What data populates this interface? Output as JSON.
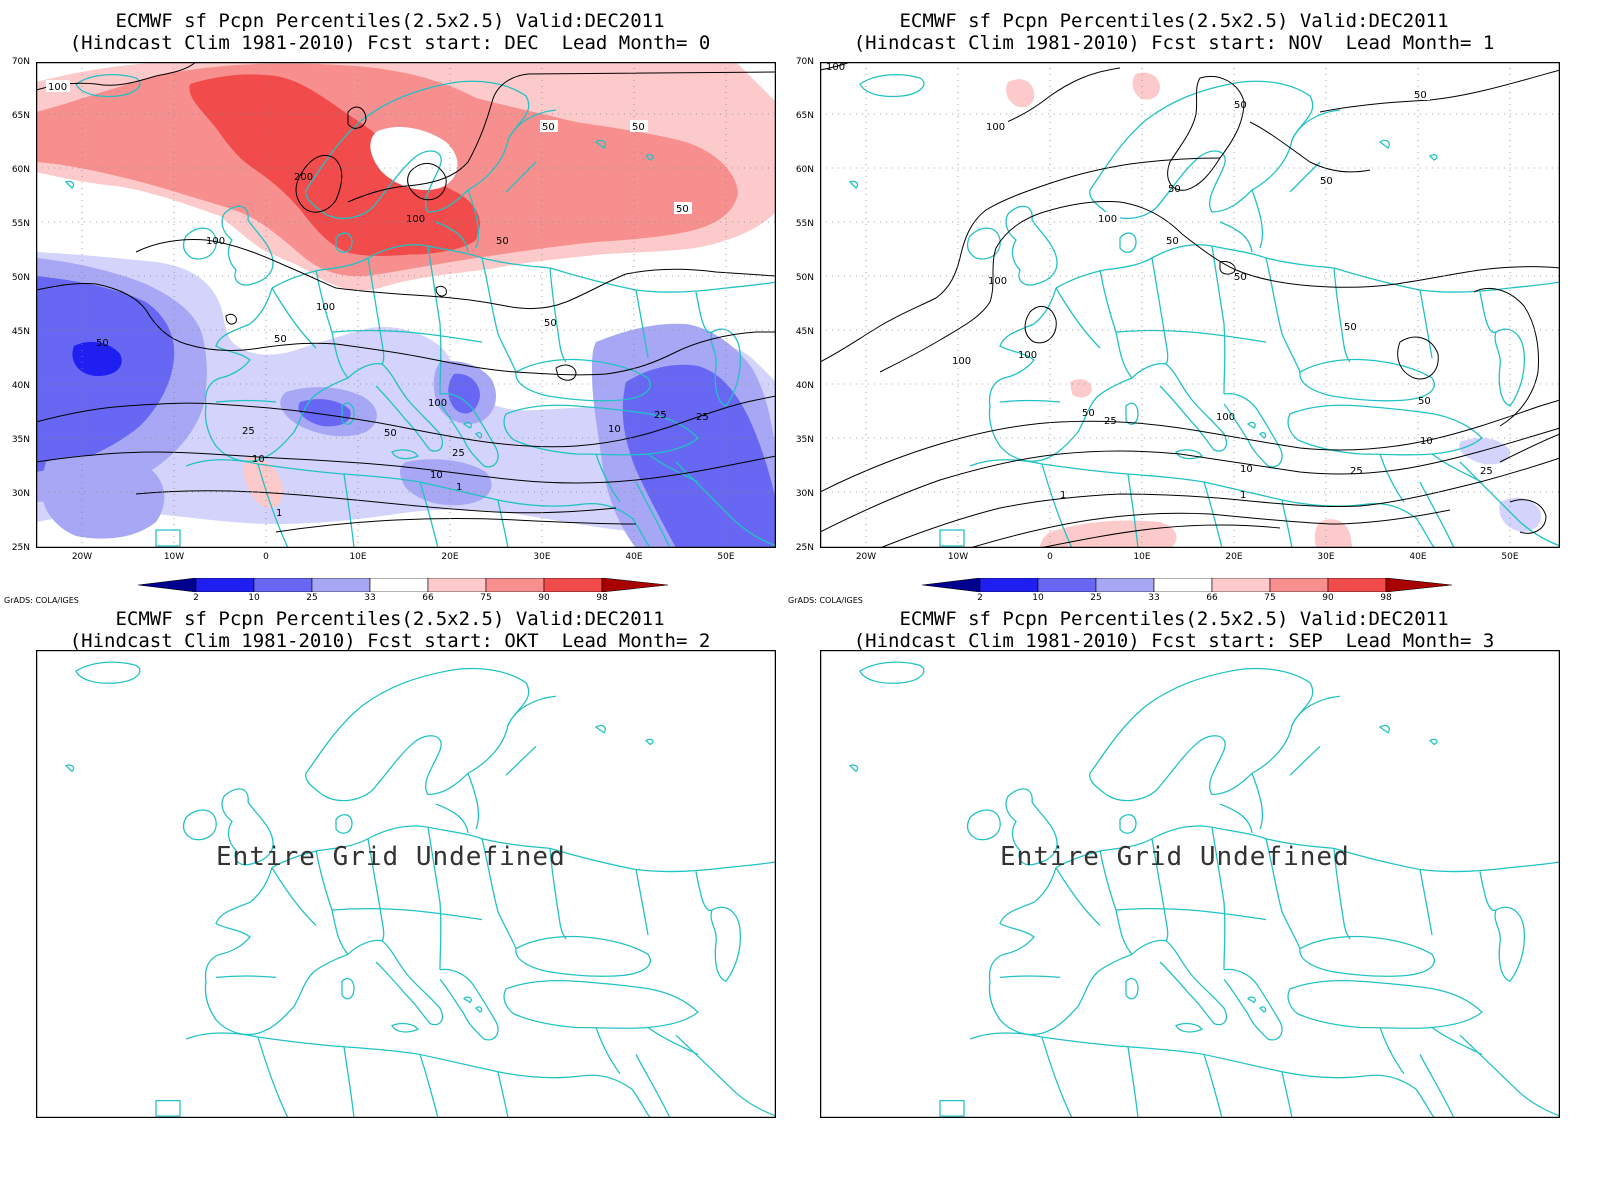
{
  "colors": {
    "coast": "#22c2c4",
    "contour": "#000000",
    "scale": [
      "#00008f",
      "#1f1ff2",
      "#6767f3",
      "#a7a7f5",
      "#d3d3fb",
      "#ffffff",
      "#fccaca",
      "#f88f8f",
      "#f24b4b",
      "#a90000"
    ]
  },
  "icons": [
    "colorbar-left-arrow-icon",
    "colorbar-right-arrow-icon"
  ],
  "axes": {
    "lat_labels": [
      "70N",
      "65N",
      "60N",
      "55N",
      "50N",
      "45N",
      "40N",
      "35N",
      "30N",
      "25N"
    ],
    "lon_labels": [
      "20W",
      "10W",
      "0",
      "10E",
      "20E",
      "30E",
      "40E",
      "50E"
    ]
  },
  "colorbar": {
    "ticks": [
      "2",
      "10",
      "25",
      "33",
      "66",
      "75",
      "90",
      "98"
    ]
  },
  "credit": "GrADS: COLA/IGES",
  "panels": [
    {
      "title_line1": "ECMWF sf Pcpn Percentiles(2.5x2.5) Valid:DEC2011",
      "title_line2": "(Hindcast Clim 1981-2010) Fcst start: DEC  Lead Month= 0",
      "contour_labels": [
        "100",
        "200",
        "100",
        "100",
        "50",
        "50",
        "50",
        "50",
        "50",
        "50",
        "100",
        "50",
        "100",
        "25",
        "50",
        "25",
        "10",
        "10",
        "1",
        "25",
        "10",
        "25",
        "1"
      ]
    },
    {
      "title_line1": "ECMWF sf Pcpn Percentiles(2.5x2.5) Valid:DEC2011",
      "title_line2": "(Hindcast Clim 1981-2010) Fcst start: NOV  Lead Month= 1",
      "contour_labels": [
        "100",
        "100",
        "50",
        "50",
        "50",
        "100",
        "50",
        "100",
        "50",
        "50",
        "100",
        "100",
        "50",
        "25",
        "50",
        "100",
        "50",
        "10",
        "25",
        "10",
        "25",
        "1",
        "1"
      ]
    },
    {
      "title_line1": "ECMWF sf Pcpn Percentiles(2.5x2.5) Valid:DEC2011",
      "title_line2": "(Hindcast Clim 1981-2010) Fcst start: OKT  Lead Month= 2",
      "message": "Entire Grid Undefined"
    },
    {
      "title_line1": "ECMWF sf Pcpn Percentiles(2.5x2.5) Valid:DEC2011",
      "title_line2": "(Hindcast Clim 1981-2010) Fcst start: SEP  Lead Month= 3",
      "message": "Entire Grid Undefined"
    }
  ]
}
